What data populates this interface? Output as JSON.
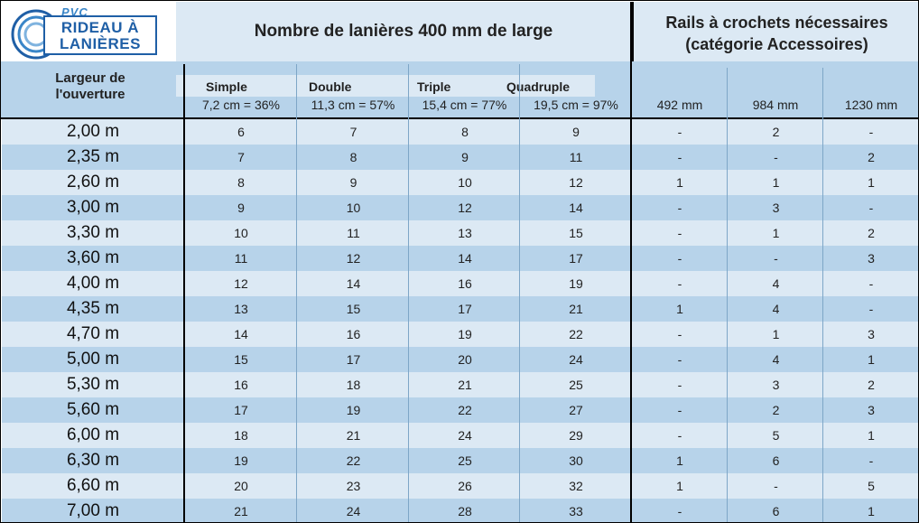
{
  "logo": {
    "top": "PVC",
    "line1": "RIDEAU À",
    "line2": "LANIÈRES"
  },
  "header": {
    "title_left": "Nombre de lanières 400 mm de large",
    "title_right_1": "Rails à crochets nécessaires",
    "title_right_2": "(catégorie Accessoires)",
    "ouverture_1": "Largeur de",
    "ouverture_2": "l'ouverture"
  },
  "types": [
    {
      "label": "Simple",
      "pct": "7,2 cm = 36%"
    },
    {
      "label": "Double",
      "pct": "11,3 cm = 57%"
    },
    {
      "label": "Triple",
      "pct": "15,4 cm = 77%"
    },
    {
      "label": "Quadruple",
      "pct": "19,5 cm = 97%"
    }
  ],
  "rails": [
    "492 mm",
    "984 mm",
    "1230 mm"
  ],
  "rows": [
    [
      "2,00 m",
      "6",
      "7",
      "8",
      "9",
      "-",
      "2",
      "-"
    ],
    [
      "2,35 m",
      "7",
      "8",
      "9",
      "11",
      "-",
      "-",
      "2"
    ],
    [
      "2,60 m",
      "8",
      "9",
      "10",
      "12",
      "1",
      "1",
      "1"
    ],
    [
      "3,00 m",
      "9",
      "10",
      "12",
      "14",
      "-",
      "3",
      "-"
    ],
    [
      "3,30 m",
      "10",
      "11",
      "13",
      "15",
      "-",
      "1",
      "2"
    ],
    [
      "3,60 m",
      "11",
      "12",
      "14",
      "17",
      "-",
      "-",
      "3"
    ],
    [
      "4,00 m",
      "12",
      "14",
      "16",
      "19",
      "-",
      "4",
      "-"
    ],
    [
      "4,35 m",
      "13",
      "15",
      "17",
      "21",
      "1",
      "4",
      "-"
    ],
    [
      "4,70 m",
      "14",
      "16",
      "19",
      "22",
      "-",
      "1",
      "3"
    ],
    [
      "5,00 m",
      "15",
      "17",
      "20",
      "24",
      "-",
      "4",
      "1"
    ],
    [
      "5,30 m",
      "16",
      "18",
      "21",
      "25",
      "-",
      "3",
      "2"
    ],
    [
      "5,60 m",
      "17",
      "19",
      "22",
      "27",
      "-",
      "2",
      "3"
    ],
    [
      "6,00 m",
      "18",
      "21",
      "24",
      "29",
      "-",
      "5",
      "1"
    ],
    [
      "6,30 m",
      "19",
      "22",
      "25",
      "30",
      "1",
      "6",
      "-"
    ],
    [
      "6,60 m",
      "20",
      "23",
      "26",
      "32",
      "1",
      "-",
      "5"
    ],
    [
      "7,00 m",
      "21",
      "24",
      "28",
      "33",
      "-",
      "6",
      "1"
    ]
  ]
}
